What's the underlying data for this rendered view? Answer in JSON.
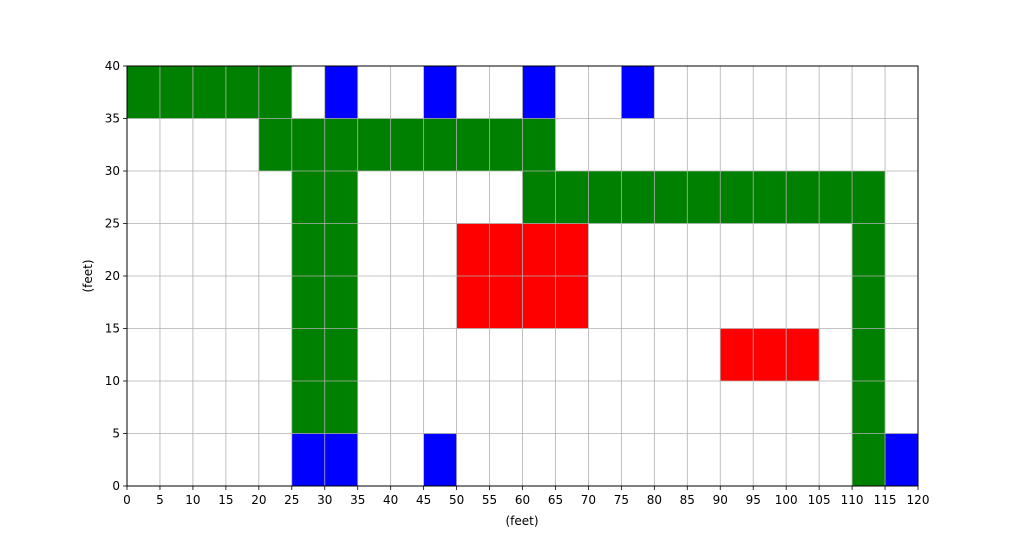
{
  "chart_data": {
    "type": "heatmap",
    "xlabel": "(feet)",
    "ylabel": "(feet)",
    "xlim": [
      0,
      120
    ],
    "ylim": [
      0,
      40
    ],
    "x_ticks": [
      "0",
      "5",
      "10",
      "15",
      "20",
      "25",
      "30",
      "35",
      "40",
      "45",
      "50",
      "55",
      "60",
      "65",
      "70",
      "75",
      "80",
      "85",
      "90",
      "95",
      "100",
      "105",
      "110",
      "115",
      "120"
    ],
    "y_ticks": [
      "0",
      "5",
      "10",
      "15",
      "20",
      "25",
      "30",
      "35",
      "40"
    ],
    "grid": true,
    "cell_size": 5,
    "colors": {
      "green": "#008000",
      "red": "#ff0000",
      "blue": "#0000ff",
      "grid": "#b0b0b0"
    },
    "cells": [
      {
        "x0": 0,
        "x1": 25,
        "y0": 35,
        "y1": 40,
        "color": "green"
      },
      {
        "x0": 20,
        "x1": 65,
        "y0": 30,
        "y1": 35,
        "color": "green"
      },
      {
        "x0": 25,
        "x1": 35,
        "y0": 5,
        "y1": 30,
        "color": "green"
      },
      {
        "x0": 60,
        "x1": 115,
        "y0": 25,
        "y1": 30,
        "color": "green"
      },
      {
        "x0": 110,
        "x1": 115,
        "y0": 0,
        "y1": 25,
        "color": "green"
      },
      {
        "x0": 50,
        "x1": 70,
        "y0": 15,
        "y1": 25,
        "color": "red"
      },
      {
        "x0": 90,
        "x1": 105,
        "y0": 10,
        "y1": 15,
        "color": "red"
      },
      {
        "x0": 30,
        "x1": 35,
        "y0": 35,
        "y1": 40,
        "color": "blue"
      },
      {
        "x0": 45,
        "x1": 50,
        "y0": 35,
        "y1": 40,
        "color": "blue"
      },
      {
        "x0": 60,
        "x1": 65,
        "y0": 35,
        "y1": 40,
        "color": "blue"
      },
      {
        "x0": 75,
        "x1": 80,
        "y0": 35,
        "y1": 40,
        "color": "blue"
      },
      {
        "x0": 25,
        "x1": 35,
        "y0": 0,
        "y1": 5,
        "color": "blue"
      },
      {
        "x0": 45,
        "x1": 50,
        "y0": 0,
        "y1": 5,
        "color": "blue"
      },
      {
        "x0": 115,
        "x1": 120,
        "y0": 0,
        "y1": 5,
        "color": "blue"
      }
    ]
  }
}
